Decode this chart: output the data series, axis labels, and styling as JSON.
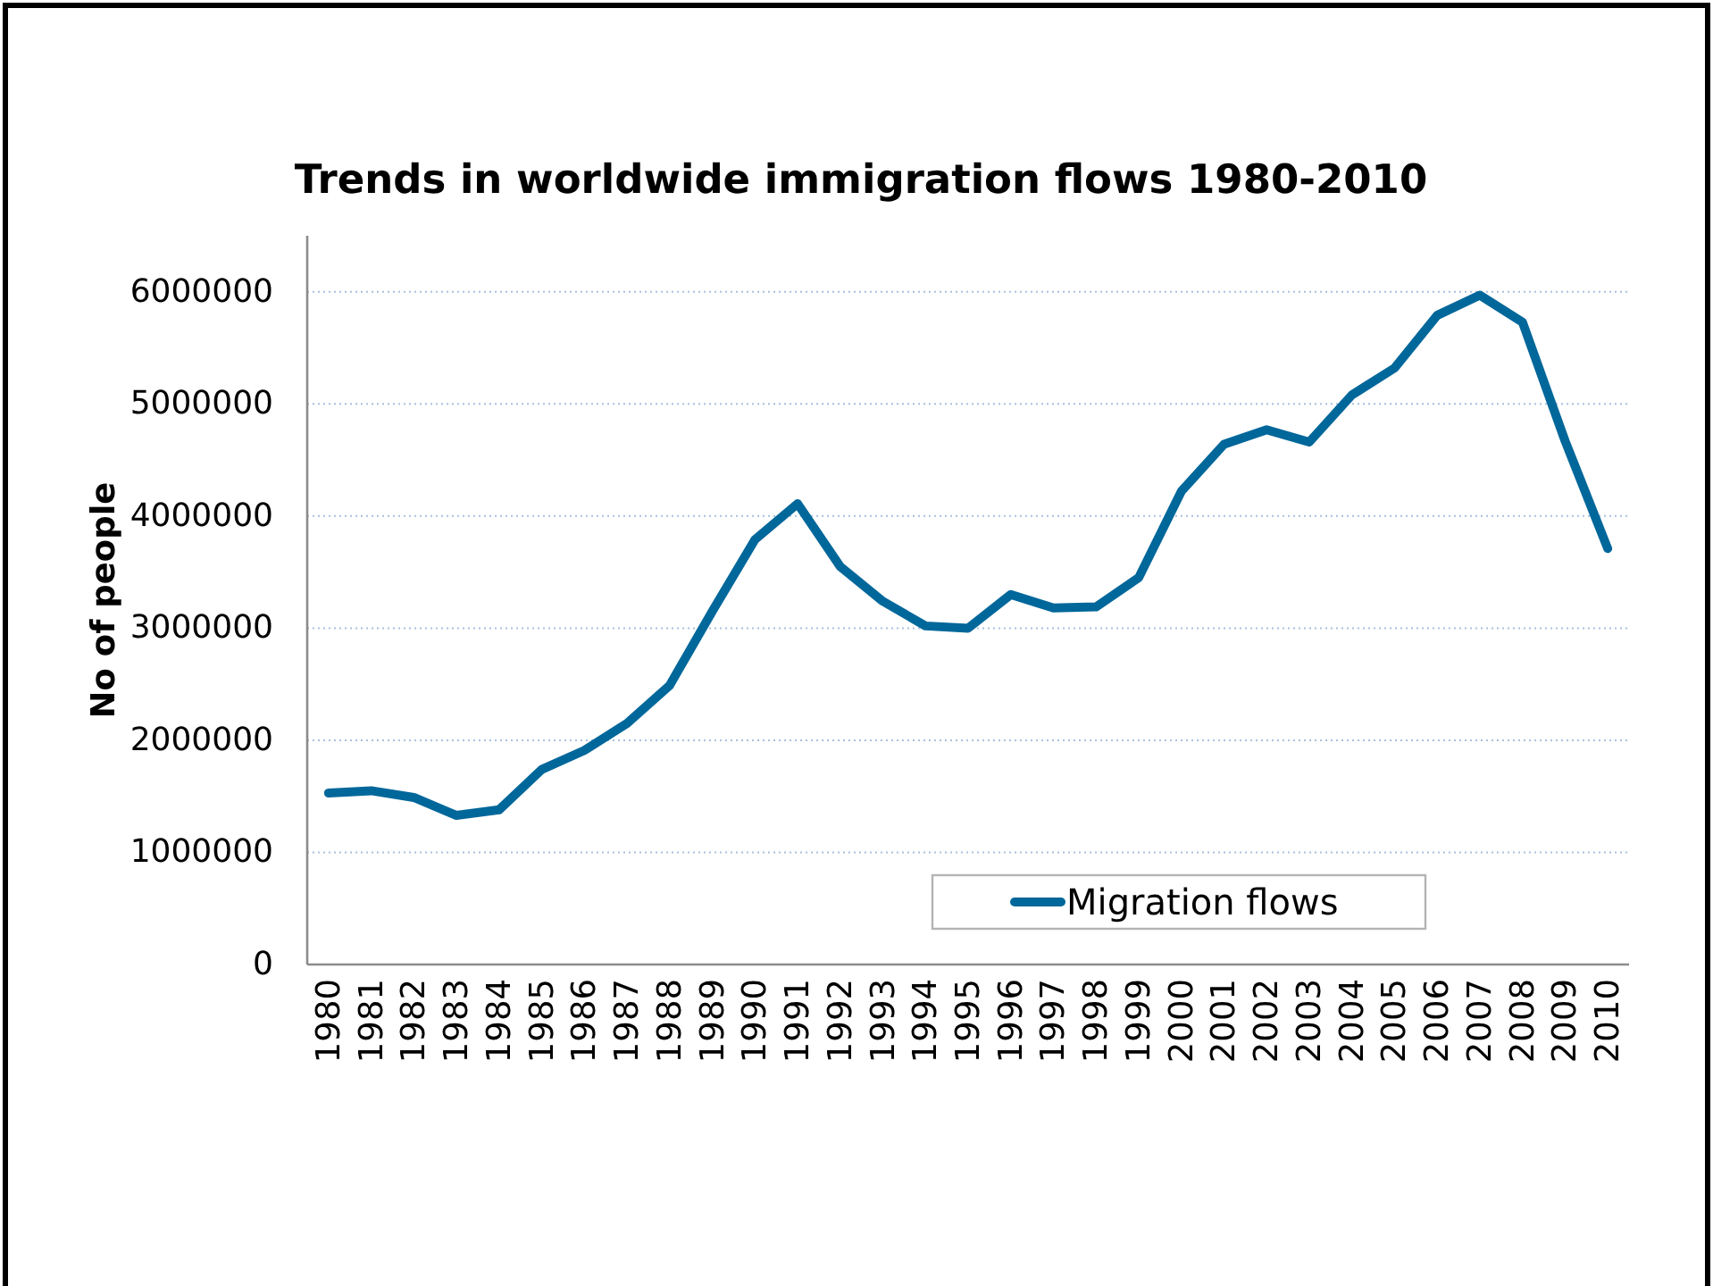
{
  "chart_data": {
    "type": "line",
    "title": "Trends in worldwide immigration flows 1980-2010",
    "ylabel": "No of people",
    "categories": [
      "1980",
      "1981",
      "1982",
      "1983",
      "1984",
      "1985",
      "1986",
      "1987",
      "1988",
      "1989",
      "1990",
      "1991",
      "1992",
      "1993",
      "1994",
      "1995",
      "1996",
      "1997",
      "1998",
      "1999",
      "2000",
      "2001",
      "2002",
      "2003",
      "2004",
      "2005",
      "2006",
      "2007",
      "2008",
      "2009",
      "2010"
    ],
    "series": [
      {
        "name": "Migration flows",
        "color": "#00679a",
        "values": [
          1530000,
          1550000,
          1490000,
          1330000,
          1380000,
          1740000,
          1910000,
          2150000,
          2490000,
          3150000,
          3790000,
          4110000,
          3550000,
          3240000,
          3020000,
          3000000,
          3300000,
          3180000,
          3190000,
          3450000,
          4220000,
          4640000,
          4770000,
          4660000,
          5080000,
          5320000,
          5790000,
          5970000,
          5730000,
          4670000,
          3710000
        ]
      }
    ],
    "ylim": [
      0,
      6500000
    ],
    "yticks": [
      0,
      1000000,
      2000000,
      3000000,
      4000000,
      5000000,
      6000000
    ],
    "grid": "y",
    "legend": "bottom right"
  }
}
